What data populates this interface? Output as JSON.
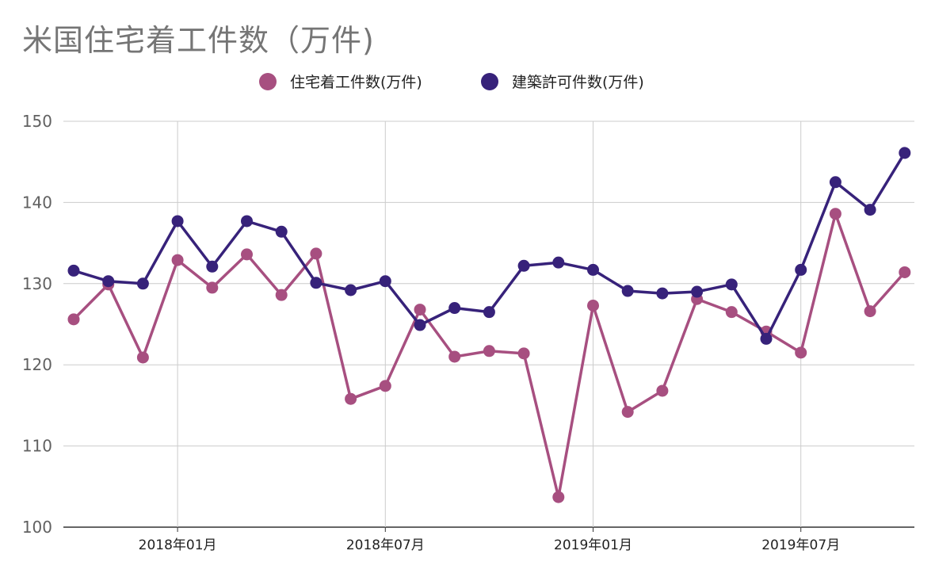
{
  "chart_data": {
    "type": "line",
    "title": "米国住宅着工件数（万件)",
    "xlabel": "",
    "ylabel": "",
    "ylim": [
      100,
      150
    ],
    "yticks": [
      100,
      110,
      120,
      130,
      140,
      150
    ],
    "x": [
      "2017年10月",
      "2017年11月",
      "2017年12月",
      "2018年01月",
      "2018年02月",
      "2018年03月",
      "2018年04月",
      "2018年05月",
      "2018年06月",
      "2018年07月",
      "2018年08月",
      "2018年09月",
      "2018年10月",
      "2018年11月",
      "2018年12月",
      "2019年01月",
      "2019年02月",
      "2019年03月",
      "2019年04月",
      "2019年05月",
      "2019年06月",
      "2019年07月",
      "2019年08月",
      "2019年09月",
      "2019年10月"
    ],
    "xtick_labels": [
      {
        "index": 3,
        "label": "2018年01月"
      },
      {
        "index": 9,
        "label": "2018年07月"
      },
      {
        "index": 15,
        "label": "2019年01月"
      },
      {
        "index": 21,
        "label": "2019年07月"
      }
    ],
    "grid": true,
    "legend_position": "top",
    "series": [
      {
        "name": "住宅着工件数(万件)",
        "color": "#a74f80",
        "values": [
          125.6,
          129.9,
          120.9,
          132.9,
          129.5,
          133.6,
          128.6,
          133.7,
          115.8,
          117.4,
          126.8,
          121.0,
          121.7,
          121.4,
          103.7,
          127.3,
          114.2,
          116.8,
          128.1,
          126.5,
          124.1,
          121.5,
          138.6,
          126.6,
          131.4
        ]
      },
      {
        "name": "建築許可件数(万件)",
        "color": "#37227a",
        "values": [
          131.6,
          130.3,
          130.0,
          137.7,
          132.1,
          137.7,
          136.4,
          130.1,
          129.2,
          130.3,
          124.9,
          127.0,
          126.5,
          132.2,
          132.6,
          131.7,
          129.1,
          128.8,
          129.0,
          129.9,
          123.2,
          131.7,
          142.5,
          139.1,
          146.1
        ]
      }
    ]
  }
}
